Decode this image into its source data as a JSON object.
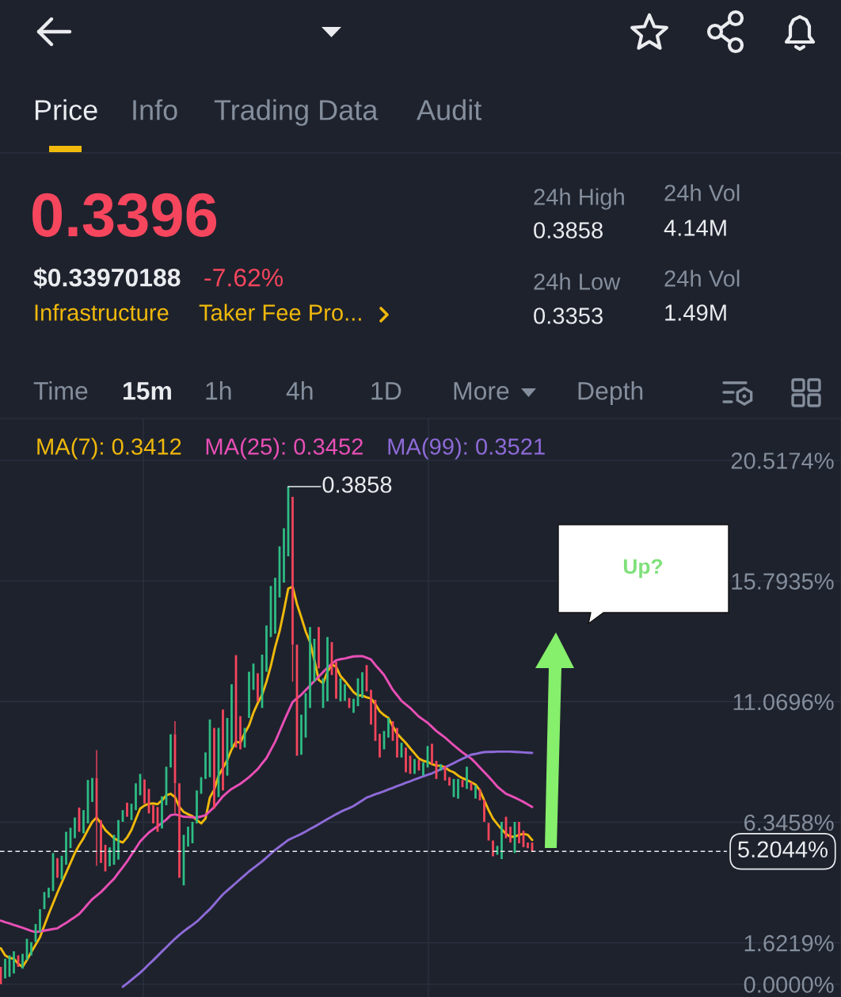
{
  "chart_data": [
    {
      "type": "other",
      "annotations": [
        "Price",
        "Info",
        "Trading Data",
        "Audit",
        "0.3396",
        "$0.33970188",
        "-7.62%",
        "Infrastructure",
        "Taker Fee Pro...",
        "24h High",
        "0.3858",
        "24h Low",
        "0.3353",
        "24h Vol",
        "4.14M",
        "24h Vol",
        "1.49M",
        "Time",
        "15m",
        "1h",
        "4h",
        "1D",
        "More",
        "Depth"
      ]
    },
    {
      "type": "candlestick",
      "categories": [
        null,
        null,
        null,
        null,
        null,
        null,
        null,
        null,
        null,
        null,
        null,
        null,
        null,
        null,
        null,
        null,
        null,
        null,
        null,
        null,
        null,
        null,
        null,
        null,
        null,
        null,
        null,
        null,
        null,
        null,
        null,
        null,
        null,
        null,
        null,
        null,
        null,
        null,
        null,
        null,
        null,
        null,
        null,
        null,
        null,
        null,
        null,
        null,
        null,
        null,
        null,
        null,
        null,
        null,
        null,
        null,
        null,
        null,
        null,
        null,
        null,
        null,
        null,
        null,
        null,
        null,
        null,
        null,
        null,
        null,
        null,
        null,
        null,
        null,
        null,
        null,
        null,
        null,
        null,
        null,
        null,
        null,
        null,
        null,
        null,
        null,
        null,
        null,
        null,
        null,
        null,
        null,
        null,
        null,
        null,
        null,
        null,
        null,
        null,
        null,
        null,
        null,
        null,
        null,
        null,
        null,
        null,
        null,
        null,
        null,
        null,
        null,
        null,
        null,
        null,
        null,
        null,
        null,
        null,
        null,
        null,
        null,
        null
      ],
      "ohlc": [
        [
          0.68,
          0.68,
          0.0,
          0.0
        ],
        [
          0.23,
          1.0,
          0.23,
          1.0
        ],
        [
          0.29,
          1.13,
          0.29,
          1.13
        ],
        [
          0.42,
          1.29,
          0.42,
          1.29
        ],
        [
          1.13,
          1.13,
          0.68,
          0.68
        ],
        [
          0.61,
          1.19,
          0.61,
          1.19
        ],
        [
          0.94,
          1.78,
          0.94,
          1.78
        ],
        [
          1.13,
          1.65,
          1.13,
          1.65
        ],
        [
          1.65,
          2.36,
          1.65,
          2.36
        ],
        [
          2.04,
          2.94,
          2.04,
          2.94
        ],
        [
          2.94,
          3.61,
          2.94,
          3.61
        ],
        [
          3.39,
          3.78,
          3.39,
          3.78
        ],
        [
          3.65,
          5.14,
          3.65,
          5.14
        ],
        [
          4.94,
          4.94,
          4.17,
          4.17
        ],
        [
          4.1,
          5.03,
          4.1,
          5.03
        ],
        [
          4.68,
          5.97,
          4.68,
          5.97
        ],
        [
          5.33,
          6.13,
          5.33,
          6.13
        ],
        [
          5.72,
          6.53,
          5.72,
          6.53
        ],
        [
          6.92,
          6.92,
          5.97,
          5.97
        ],
        [
          5.91,
          6.82,
          5.91,
          6.82
        ],
        [
          6.3,
          8.0,
          6.3,
          8.0
        ],
        [
          7.14,
          8.08,
          7.14,
          8.08
        ],
        [
          8.08,
          9.17,
          4.64,
          6.43
        ],
        [
          6.43,
          6.43,
          4.75,
          4.75
        ],
        [
          5.46,
          5.46,
          4.42,
          4.42
        ],
        [
          4.62,
          5.36,
          4.62,
          5.36
        ],
        [
          4.68,
          5.85,
          4.68,
          5.85
        ],
        [
          4.88,
          6.43,
          4.88,
          6.43
        ],
        [
          6.36,
          6.82,
          6.36,
          6.82
        ],
        [
          7.11,
          7.11,
          6.56,
          6.56
        ],
        [
          6.43,
          7.07,
          6.43,
          7.07
        ],
        [
          6.82,
          7.87,
          6.82,
          7.87
        ],
        [
          7.4,
          8.24,
          7.4,
          8.24
        ],
        [
          8.02,
          8.02,
          7.07,
          7.07
        ],
        [
          7.65,
          7.65,
          6.69,
          6.69
        ],
        [
          7.01,
          7.01,
          6.3,
          6.3
        ],
        [
          6.94,
          6.94,
          5.97,
          5.97
        ],
        [
          6.1,
          7.36,
          6.1,
          7.36
        ],
        [
          7.01,
          8.52,
          7.01,
          8.52
        ],
        [
          8.49,
          9.79,
          8.49,
          9.79
        ],
        [
          9.79,
          10.3,
          6.69,
          7.87
        ],
        [
          7.87,
          7.87,
          4.17,
          4.17
        ],
        [
          3.87,
          5.85,
          3.87,
          5.85
        ],
        [
          5.39,
          6.17,
          5.39,
          6.17
        ],
        [
          5.52,
          6.36,
          5.52,
          6.36
        ],
        [
          6.3,
          7.59,
          6.3,
          7.59
        ],
        [
          7.46,
          8.11,
          7.46,
          8.11
        ],
        [
          8.04,
          9.08,
          8.04,
          9.08
        ],
        [
          8.11,
          10.37,
          8.11,
          10.37
        ],
        [
          10.04,
          10.04,
          6.88,
          6.88
        ],
        [
          7.33,
          10.04,
          7.33,
          10.04
        ],
        [
          10.76,
          10.76,
          7.59,
          7.59
        ],
        [
          8.17,
          10.43,
          8.17,
          10.43
        ],
        [
          9.27,
          11.75,
          9.27,
          11.75
        ],
        [
          12.89,
          12.89,
          9.27,
          9.27
        ],
        [
          10.5,
          10.5,
          9.2,
          9.2
        ],
        [
          9.27,
          10.04,
          9.27,
          10.04
        ],
        [
          10.43,
          12.24,
          10.43,
          12.24
        ],
        [
          11.53,
          12.56,
          11.53,
          12.56
        ],
        [
          12.18,
          12.18,
          11.08,
          11.08
        ],
        [
          10.82,
          12.91,
          10.82,
          12.91
        ],
        [
          12.24,
          14.05,
          12.24,
          14.05
        ],
        [
          13.6,
          15.6,
          13.6,
          15.6
        ],
        [
          13.73,
          15.92,
          13.73,
          15.92
        ],
        [
          15.15,
          17.15,
          15.15,
          17.15
        ],
        [
          15.73,
          17.86,
          15.73,
          17.86
        ],
        [
          16.76,
          19.49,
          16.76,
          19.49
        ],
        [
          19.09,
          19.09,
          11.85,
          13.3
        ],
        [
          13.3,
          13.3,
          8.95,
          8.95
        ],
        [
          8.99,
          10.56,
          8.99,
          10.56
        ],
        [
          9.66,
          11.4,
          9.66,
          11.4
        ],
        [
          10.82,
          13.99,
          10.82,
          13.99
        ],
        [
          11.85,
          13.53,
          11.85,
          13.53
        ],
        [
          13.99,
          13.99,
          12.37,
          12.37
        ],
        [
          10.82,
          11.98,
          10.82,
          11.98
        ],
        [
          11.08,
          13.6,
          11.08,
          13.6
        ],
        [
          13.4,
          13.4,
          12.11,
          12.11
        ],
        [
          12.63,
          12.63,
          11.18,
          11.18
        ],
        [
          11.08,
          11.98,
          11.08,
          11.98
        ],
        [
          11.1,
          11.75,
          11.1,
          11.75
        ],
        [
          11.21,
          11.21,
          10.82,
          10.82
        ],
        [
          10.63,
          11.18,
          10.63,
          11.18
        ],
        [
          10.89,
          11.98,
          10.89,
          11.98
        ],
        [
          11.21,
          12.22,
          11.21,
          12.22
        ],
        [
          12.5,
          12.5,
          11.47,
          11.47
        ],
        [
          11.53,
          11.53,
          10.17,
          10.17
        ],
        [
          11.14,
          11.14,
          9.53,
          9.53
        ],
        [
          9.81,
          9.81,
          8.88,
          8.88
        ],
        [
          9.2,
          9.92,
          9.2,
          9.92
        ],
        [
          9.66,
          10.43,
          9.66,
          10.43
        ],
        [
          10.3,
          10.3,
          9.53,
          9.53
        ],
        [
          10.04,
          10.04,
          8.88,
          8.88
        ],
        [
          8.88,
          9.46,
          8.88,
          9.46
        ],
        [
          9.27,
          9.27,
          8.3,
          8.3
        ],
        [
          8.95,
          8.95,
          8.24,
          8.24
        ],
        [
          8.24,
          8.82,
          8.24,
          8.82
        ],
        [
          8.78,
          8.78,
          8.37,
          8.37
        ],
        [
          8.17,
          8.69,
          8.17,
          8.69
        ],
        [
          8.49,
          9.33,
          8.49,
          9.33
        ],
        [
          9.42,
          9.42,
          8.62,
          8.62
        ],
        [
          8.75,
          8.75,
          8.04,
          8.04
        ],
        [
          8.37,
          8.62,
          8.37,
          8.62
        ],
        [
          8.56,
          8.56,
          7.98,
          7.98
        ],
        [
          8.11,
          8.11,
          7.78,
          7.78
        ],
        [
          7.33,
          8.04,
          7.33,
          8.04
        ],
        [
          7.27,
          8.04,
          7.27,
          8.04
        ],
        [
          8.0,
          8.0,
          7.72,
          7.72
        ],
        [
          7.65,
          8.52,
          7.65,
          8.52
        ],
        [
          7.91,
          7.91,
          7.59,
          7.59
        ],
        [
          7.27,
          7.78,
          7.27,
          7.78
        ],
        [
          7.65,
          7.65,
          7.2,
          7.2
        ],
        [
          7.23,
          7.23,
          6.36,
          6.36
        ],
        [
          6.32,
          6.32,
          5.63,
          5.63
        ],
        [
          5.63,
          5.63,
          5.01,
          5.01
        ],
        [
          5.07,
          5.42,
          5.07,
          5.42
        ],
        [
          4.9,
          6.36,
          4.9,
          6.36
        ],
        [
          6.56,
          6.56,
          5.72,
          5.72
        ],
        [
          6.17,
          6.17,
          5.55,
          5.55
        ],
        [
          5.14,
          6.36,
          5.14,
          6.36
        ],
        [
          6.36,
          6.36,
          5.52,
          5.52
        ],
        [
          6.01,
          6.01,
          5.37,
          5.37
        ],
        [
          5.55,
          5.55,
          5.33,
          5.33
        ],
        [
          5.55,
          5.55,
          5.2,
          5.2
        ]
      ],
      "colors": [
        "#f6465d",
        "#2ebd85",
        "#2ebd85",
        "#2ebd85",
        "#f6465d",
        "#2ebd85",
        "#2ebd85",
        "#2ebd85",
        "#2ebd85",
        "#2ebd85",
        "#2ebd85",
        "#2ebd85",
        "#2ebd85",
        "#f6465d",
        "#2ebd85",
        "#2ebd85",
        "#2ebd85",
        "#2ebd85",
        "#f6465d",
        "#2ebd85",
        "#2ebd85",
        "#2ebd85",
        "#f6465d",
        "#f6465d",
        "#f6465d",
        "#2ebd85",
        "#2ebd85",
        "#2ebd85",
        "#2ebd85",
        "#f6465d",
        "#2ebd85",
        "#2ebd85",
        "#2ebd85",
        "#f6465d",
        "#f6465d",
        "#f6465d",
        "#f6465d",
        "#2ebd85",
        "#2ebd85",
        "#2ebd85",
        "#f6465d",
        "#f6465d",
        "#2ebd85",
        "#2ebd85",
        "#2ebd85",
        "#2ebd85",
        "#2ebd85",
        "#2ebd85",
        "#2ebd85",
        "#f6465d",
        "#2ebd85",
        "#f6465d",
        "#2ebd85",
        "#2ebd85",
        "#f6465d",
        "#f6465d",
        "#2ebd85",
        "#2ebd85",
        "#2ebd85",
        "#f6465d",
        "#2ebd85",
        "#2ebd85",
        "#2ebd85",
        "#2ebd85",
        "#2ebd85",
        "#2ebd85",
        "#2ebd85",
        "#f6465d",
        "#f6465d",
        "#2ebd85",
        "#2ebd85",
        "#2ebd85",
        "#2ebd85",
        "#f6465d",
        "#2ebd85",
        "#2ebd85",
        "#f6465d",
        "#f6465d",
        "#2ebd85",
        "#2ebd85",
        "#f6465d",
        "#2ebd85",
        "#2ebd85",
        "#2ebd85",
        "#f6465d",
        "#f6465d",
        "#f6465d",
        "#f6465d",
        "#2ebd85",
        "#2ebd85",
        "#f6465d",
        "#f6465d",
        "#2ebd85",
        "#f6465d",
        "#f6465d",
        "#2ebd85",
        "#f6465d",
        "#2ebd85",
        "#2ebd85",
        "#f6465d",
        "#f6465d",
        "#2ebd85",
        "#f6465d",
        "#f6465d",
        "#2ebd85",
        "#2ebd85",
        "#f6465d",
        "#2ebd85",
        "#f6465d",
        "#2ebd85",
        "#f6465d",
        "#f6465d",
        "#f6465d",
        "#f6465d",
        "#2ebd85",
        "#2ebd85",
        "#f6465d",
        "#f6465d",
        "#2ebd85",
        "#f6465d",
        "#f6465d",
        "#f6465d",
        "#f6465d"
      ],
      "series": [
        {
          "name": "MA(7): 0.3412",
          "type": "line",
          "color": "#f0b90b",
          "values": [
            1.41,
            1.13,
            1.03,
            1.0,
            0.8,
            0.68,
            0.95,
            1.26,
            1.55,
            1.84,
            2.3,
            2.75,
            3.17,
            3.59,
            3.98,
            4.36,
            4.75,
            5.14,
            5.45,
            5.72,
            6.05,
            6.36,
            6.53,
            6.3,
            6.04,
            5.88,
            5.72,
            5.62,
            5.55,
            5.75,
            6.04,
            6.47,
            6.88,
            7.0,
            7.07,
            7.08,
            7.05,
            7.2,
            7.4,
            7.46,
            7.33,
            6.94,
            6.75,
            6.66,
            6.58,
            6.43,
            6.3,
            6.49,
            7.31,
            7.62,
            8.17,
            8.47,
            8.78,
            9.2,
            9.5,
            9.46,
            9.83,
            10.14,
            10.63,
            11.01,
            11.34,
            11.85,
            12.47,
            13.21,
            13.82,
            14.63,
            15.5,
            15.57,
            14.89,
            14.37,
            13.82,
            13.4,
            12.69,
            11.92,
            11.79,
            12.24,
            12.53,
            12.43,
            12.07,
            11.88,
            11.66,
            11.44,
            11.31,
            11.31,
            11.24,
            11.19,
            10.97,
            10.69,
            10.54,
            10.43,
            10.11,
            9.81,
            9.63,
            9.45,
            9.24,
            9.04,
            8.84,
            8.75,
            8.71,
            8.62,
            8.56,
            8.56,
            8.49,
            8.37,
            8.3,
            8.17,
            8.07,
            8.0,
            7.91,
            7.82,
            7.59,
            7.2,
            6.82,
            6.49,
            6.27,
            6.07,
            5.89,
            5.78,
            5.78,
            5.85,
            5.89,
            5.85,
            5.65
          ]
        },
        {
          "name": "MA(25): 0.3452",
          "type": "line",
          "color": "#e94fb6",
          "values": [
            2.49,
            2.43,
            2.38,
            2.32,
            2.27,
            2.21,
            2.15,
            2.09,
            2.04,
            2.07,
            2.1,
            2.13,
            2.16,
            2.19,
            2.3,
            2.4,
            2.52,
            2.63,
            2.75,
            2.94,
            3.14,
            3.33,
            3.47,
            3.61,
            3.78,
            3.96,
            4.13,
            4.36,
            4.58,
            4.81,
            5.07,
            5.33,
            5.59,
            5.77,
            5.94,
            6.07,
            6.19,
            6.32,
            6.45,
            6.62,
            6.65,
            6.61,
            6.56,
            6.55,
            6.54,
            6.53,
            6.57,
            6.62,
            6.78,
            6.94,
            7.15,
            7.36,
            7.51,
            7.65,
            7.75,
            7.85,
            7.98,
            8.11,
            8.27,
            8.43,
            8.65,
            8.86,
            9.18,
            9.5,
            9.9,
            10.3,
            10.68,
            11.05,
            11.2,
            11.34,
            11.52,
            11.7,
            11.88,
            12.05,
            12.23,
            12.4,
            12.55,
            12.69,
            12.73,
            12.76,
            12.8,
            12.84,
            12.85,
            12.85,
            12.79,
            12.72,
            12.5,
            12.31,
            12.11,
            11.82,
            11.53,
            11.32,
            11.1,
            10.96,
            10.82,
            10.65,
            10.48,
            10.36,
            10.24,
            10.08,
            9.92,
            9.79,
            9.66,
            9.51,
            9.36,
            9.22,
            9.08,
            8.96,
            8.84,
            8.67,
            8.49,
            8.31,
            8.13,
            7.94,
            7.74,
            7.6,
            7.46,
            7.39,
            7.31,
            7.23,
            7.14,
            7.04,
            6.94
          ]
        },
        {
          "name": "MA(99): 0.3521",
          "type": "line",
          "color": "#8e6bd8",
          "values": [
            null,
            null,
            null,
            null,
            null,
            null,
            null,
            null,
            null,
            null,
            null,
            null,
            null,
            null,
            null,
            null,
            null,
            null,
            null,
            null,
            null,
            null,
            null,
            null,
            null,
            null,
            null,
            null,
            -0.1,
            0.03,
            0.17,
            0.31,
            0.45,
            0.61,
            0.78,
            0.94,
            1.11,
            1.28,
            1.45,
            1.62,
            1.78,
            1.93,
            2.07,
            2.2,
            2.32,
            2.45,
            2.61,
            2.78,
            2.94,
            3.13,
            3.33,
            3.52,
            3.67,
            3.82,
            3.97,
            4.12,
            4.27,
            4.42,
            4.55,
            4.68,
            4.81,
            4.96,
            5.11,
            5.26,
            5.39,
            5.52,
            5.65,
            5.73,
            5.81,
            5.89,
            5.98,
            6.08,
            6.17,
            6.27,
            6.37,
            6.47,
            6.56,
            6.66,
            6.75,
            6.83,
            6.9,
            6.98,
            7.09,
            7.2,
            7.31,
            7.37,
            7.44,
            7.5,
            7.56,
            7.63,
            7.69,
            7.76,
            7.82,
            7.89,
            7.95,
            8.02,
            8.08,
            8.14,
            8.2,
            8.26,
            8.34,
            8.41,
            8.49,
            8.58,
            8.66,
            8.75,
            8.83,
            8.91,
            8.99,
            9.02,
            9.06,
            9.09,
            9.1,
            9.1,
            9.11,
            9.11,
            9.11,
            9.11,
            9.1,
            9.09,
            9.08,
            9.07,
            9.06
          ]
        }
      ],
      "ylim": [
        -0.5,
        22.16
      ],
      "yticks": [
        {
          "value": 0,
          "label": "0.0000%"
        },
        {
          "value": 1.6219,
          "label": "1.6219%"
        },
        {
          "value": 6.3458,
          "label": "6.3458%"
        },
        {
          "value": 11.0696,
          "label": "11.0696%"
        },
        {
          "value": 15.7935,
          "label": "15.7935%"
        },
        {
          "value": 20.5174,
          "label": "20.5174%"
        }
      ],
      "grid": "y",
      "legend": "top left",
      "ref_lines": [
        {
          "axis": "y",
          "value": 5.2044,
          "line_style": "dashed",
          "color": "#eaecef"
        }
      ],
      "annotations": [
        "0.3858",
        "Up?",
        "5.2044%"
      ]
    }
  ]
}
